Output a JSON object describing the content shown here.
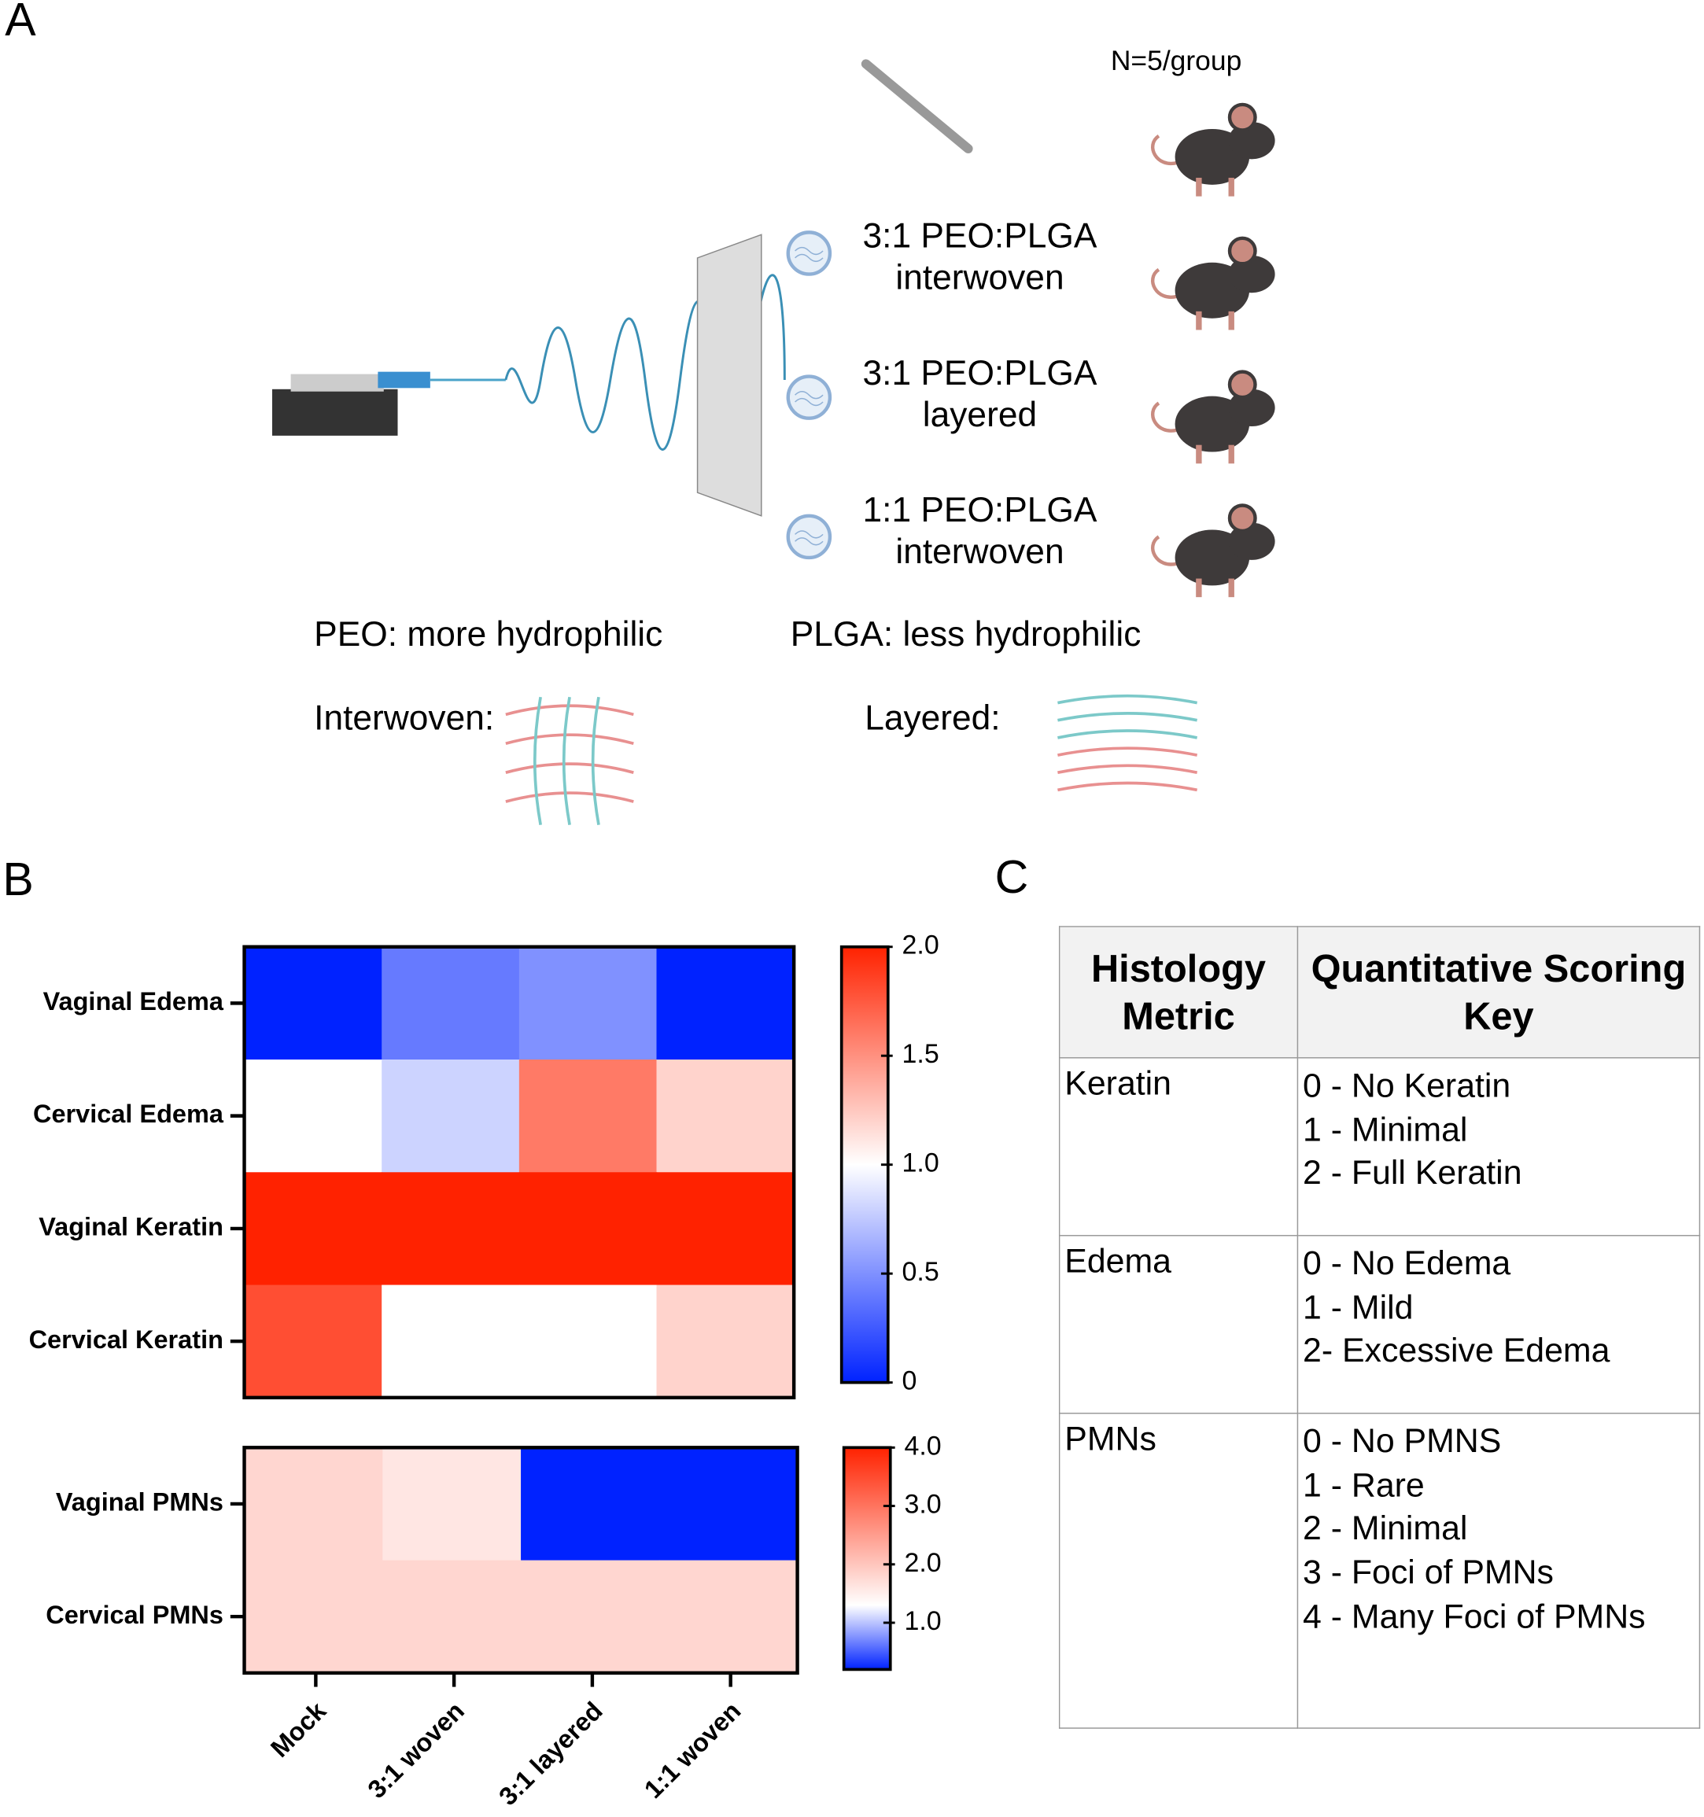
{
  "panel_a": {
    "label": "A",
    "group_size": "N=5/group",
    "groups": [
      [
        "3:1 PEO:PLGA",
        "interwoven"
      ],
      [
        "3:1 PEO:PLGA",
        "layered"
      ],
      [
        "1:1 PEO:PLGA",
        "interwoven"
      ]
    ],
    "peo": "PEO: more hydrophilic",
    "plga": "PLGA: less hydrophilic",
    "interwoven": "Interwoven:",
    "layered": "Layered:"
  },
  "panel_b": {
    "label": "B"
  },
  "chart_data": [
    {
      "type": "heatmap",
      "rows": [
        "Vaginal Edema",
        "Cervical Edema",
        "Vaginal Keratin",
        "Cervical Keratin"
      ],
      "values": [
        [
          0,
          0.4,
          0.5,
          0
        ],
        [
          1,
          0.8,
          1.6,
          1.2
        ],
        [
          2,
          2,
          2,
          2
        ],
        [
          1.8,
          1,
          1,
          1.2
        ]
      ],
      "zlim": [
        0,
        2
      ],
      "zticks": [
        0,
        0.5,
        {
          "value": 1,
          "label": "1.0"
        },
        1.5,
        {
          "value": 2,
          "label": "2.0"
        }
      ],
      "colors": [
        "#0022ff",
        "#ffffff",
        "#ff2200"
      ],
      "color_mid": 1
    },
    {
      "type": "heatmap",
      "rows": [
        "Vaginal PMNs",
        "Cervical PMNs"
      ],
      "categories": [
        "Mock",
        "3:1 woven",
        "3:1 layered",
        "1:1 woven"
      ],
      "values": [
        [
          1.8,
          1.6,
          0.2,
          0.2
        ],
        [
          1.8,
          1.8,
          1.8,
          1.8
        ]
      ],
      "zlim": [
        0.2,
        4
      ],
      "zticks": [
        {
          "value": 1,
          "label": "1.0"
        },
        {
          "value": 2,
          "label": "2.0"
        },
        {
          "value": 3,
          "label": "3.0"
        },
        {
          "value": 4,
          "label": "4.0"
        }
      ],
      "colors": [
        "#0022ff",
        "#ffffff",
        "#ff2200"
      ],
      "color_mid": 1.3
    }
  ],
  "panel_c": {
    "label": "C",
    "table": {
      "header": [
        "Histology Metric",
        "Quantitative Scoring Key"
      ],
      "rows": [
        [
          "Keratin",
          [
            "0 - No Keratin",
            "1 - Minimal",
            "2 - Full Keratin"
          ]
        ],
        [
          "Edema",
          [
            "0 - No Edema",
            "1 - Mild",
            "2- Excessive Edema"
          ]
        ],
        [
          "PMNs",
          [
            "0 - No PMNS",
            "1 - Rare",
            "2 - Minimal",
            "3 - Foci of PMNs",
            "4 - Many Foci of PMNs"
          ]
        ]
      ]
    }
  }
}
